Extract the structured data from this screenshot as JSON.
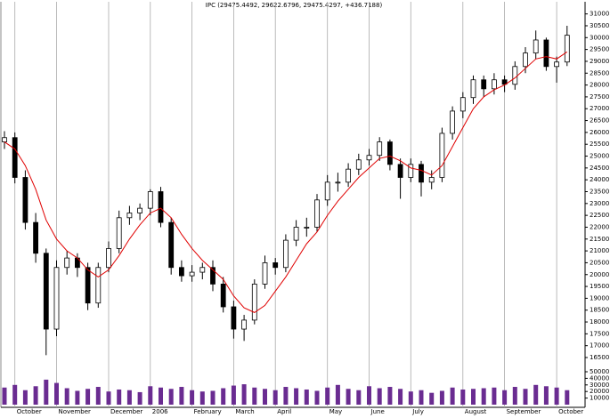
{
  "chart_data": {
    "type": "candlestick",
    "title": "IPC (29475.4492, 29622.6796, 29475.4297, +436.7188)",
    "categories": [
      null,
      "October",
      null,
      null,
      null,
      "November",
      null,
      null,
      null,
      null,
      "December",
      null,
      null,
      null,
      "2006",
      null,
      null,
      null,
      "February",
      null,
      null,
      null,
      "March",
      null,
      null,
      null,
      "April",
      null,
      null,
      null,
      null,
      "May",
      null,
      null,
      null,
      "June",
      null,
      null,
      null,
      "July",
      null,
      null,
      null,
      null,
      "August",
      null,
      null,
      null,
      "September",
      null,
      null,
      null,
      null,
      "October",
      null
    ],
    "open": [
      25600,
      25780,
      24100,
      22200,
      20900,
      17700,
      20300,
      20700,
      20300,
      18800,
      20300,
      21100,
      22400,
      22600,
      22800,
      23500,
      22200,
      20300,
      19950,
      20100,
      20300,
      19600,
      18640,
      17700,
      18080,
      19600,
      20500,
      20300,
      21450,
      22000,
      22000,
      23150,
      23900,
      23900,
      24450,
      24840,
      25030,
      25600,
      24650,
      24100,
      24650,
      23900,
      24100,
      25960,
      26900,
      27470,
      28220,
      27840,
      28220,
      28030,
      28780,
      29350,
      29900,
      28780,
      28970
    ],
    "high": [
      26050,
      26000,
      24400,
      22600,
      21100,
      20600,
      21000,
      20900,
      20500,
      20500,
      21400,
      22700,
      22900,
      23000,
      23600,
      23700,
      22400,
      20600,
      20400,
      20500,
      20600,
      19900,
      18900,
      18300,
      19800,
      20800,
      20700,
      21700,
      22300,
      22400,
      23400,
      24200,
      24300,
      24700,
      25100,
      25300,
      25800,
      25700,
      24900,
      24900,
      24800,
      24400,
      26200,
      27100,
      27700,
      28400,
      28400,
      28500,
      28400,
      29000,
      29600,
      30300,
      30000,
      29200,
      30500
    ],
    "low": [
      25300,
      23850,
      21900,
      20500,
      16600,
      17400,
      20000,
      19900,
      18500,
      18600,
      20100,
      20900,
      22100,
      22300,
      22500,
      22000,
      20000,
      19700,
      19700,
      19800,
      19300,
      18400,
      17300,
      17200,
      17900,
      19400,
      20000,
      20100,
      21200,
      21600,
      21800,
      22900,
      23500,
      23700,
      24200,
      24600,
      24800,
      24400,
      23200,
      23900,
      23300,
      23600,
      23900,
      25700,
      26600,
      27200,
      27500,
      27600,
      27700,
      27800,
      28500,
      29100,
      28600,
      28100,
      28800
    ],
    "close": [
      25780,
      24100,
      22200,
      20900,
      17700,
      20300,
      20700,
      20300,
      18800,
      20300,
      21100,
      22400,
      22600,
      22800,
      23500,
      22200,
      20300,
      19950,
      20100,
      20300,
      19600,
      18640,
      17700,
      18080,
      19600,
      20500,
      20300,
      21450,
      22000,
      22000,
      23150,
      23900,
      23900,
      24450,
      24840,
      25030,
      25600,
      24650,
      24100,
      24650,
      23900,
      24100,
      25960,
      26900,
      27470,
      28220,
      27840,
      28220,
      28030,
      28780,
      29350,
      29900,
      28780,
      28970,
      30100
    ],
    "color": "#000000",
    "moving_average": {
      "color": "#e00000",
      "values": [
        25600,
        25300,
        24600,
        23600,
        22300,
        21500,
        21000,
        20700,
        20200,
        19900,
        20200,
        20800,
        21500,
        22100,
        22600,
        22800,
        22400,
        21700,
        21100,
        20600,
        20200,
        19800,
        19100,
        18600,
        18400,
        18700,
        19300,
        19900,
        20600,
        21300,
        21800,
        22500,
        23100,
        23600,
        24100,
        24500,
        24900,
        25000,
        24800,
        24500,
        24400,
        24200,
        24600,
        25400,
        26200,
        27000,
        27500,
        27800,
        28000,
        28300,
        28700,
        29100,
        29200,
        29100,
        29400
      ]
    },
    "ylim": [
      16200,
      31400
    ],
    "yticks": [
      16500,
      17000,
      17500,
      18000,
      18500,
      19000,
      19500,
      20000,
      20500,
      21000,
      21500,
      22000,
      22500,
      23000,
      23500,
      24000,
      24500,
      25000,
      25500,
      26000,
      26500,
      27000,
      27500,
      28000,
      28500,
      29000,
      29500,
      30000,
      30500,
      31000
    ],
    "volume": {
      "color": "#6a2c91",
      "values": [
        26000,
        30000,
        22000,
        28000,
        38000,
        33000,
        25000,
        21000,
        24000,
        27000,
        20000,
        23000,
        22000,
        19000,
        28000,
        26000,
        24000,
        27000,
        22000,
        20000,
        21000,
        25000,
        29000,
        31000,
        26000,
        24000,
        22000,
        27000,
        25000,
        23000,
        21000,
        26000,
        30000,
        24000,
        22000,
        28000,
        25000,
        27000,
        24000,
        20000,
        22000,
        18000,
        21000,
        26000,
        23000,
        24000,
        25000,
        26000,
        22000,
        27000,
        24000,
        30000,
        28000,
        26000,
        22000
      ],
      "ylim": [
        0,
        60000
      ],
      "yticks": [
        10000,
        20000,
        30000,
        40000,
        50000
      ]
    },
    "grid": false,
    "month_lines": true
  }
}
